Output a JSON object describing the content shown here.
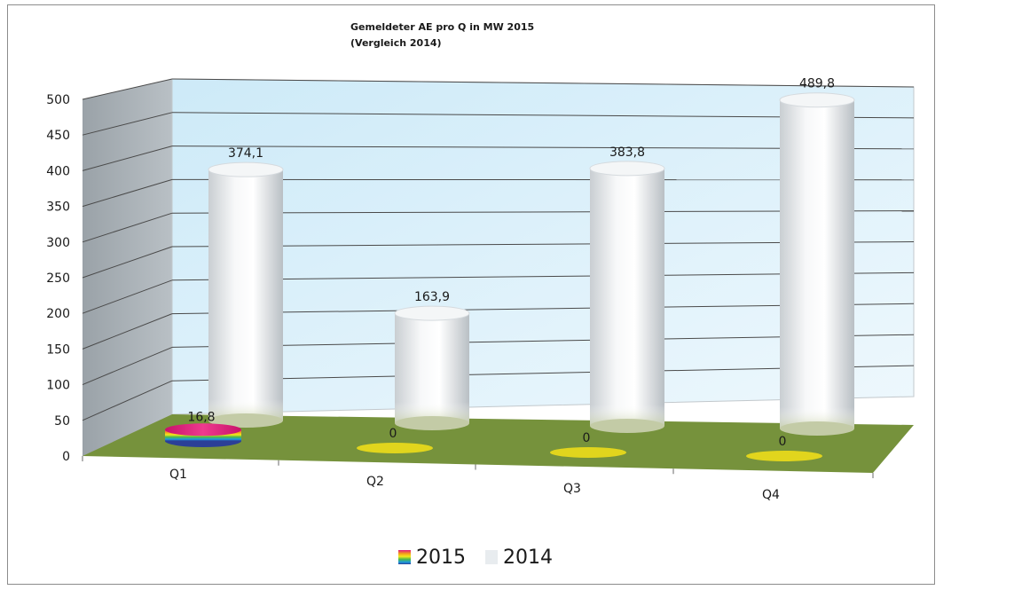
{
  "chart_data": {
    "type": "bar",
    "style": "3d-cylinder",
    "title": "Gemeldeter AE  pro Q in MW 2015",
    "subtitle": "(Vergleich 2014)",
    "categories": [
      "Q1",
      "Q2",
      "Q3",
      "Q4"
    ],
    "series": [
      {
        "name": "2015",
        "values": [
          16.8,
          0,
          0,
          0
        ],
        "labels": [
          "16,8",
          "0",
          "0",
          "0"
        ],
        "color": "rainbow",
        "zero_marker_color": "#e1d51d"
      },
      {
        "name": "2014",
        "values": [
          374.1,
          163.9,
          383.8,
          489.8
        ],
        "labels": [
          "374,1",
          "163,9",
          "383,8",
          "489,8"
        ],
        "color": "#e8ecef"
      }
    ],
    "y_ticks": [
      "0",
      "50",
      "100",
      "150",
      "200",
      "250",
      "300",
      "350",
      "400",
      "450",
      "500"
    ],
    "ylim": [
      0,
      500
    ],
    "grid": true,
    "legend_position": "bottom",
    "colors": {
      "back_wall": "#dff2fc",
      "side_wall": "#a9b1b7",
      "floor": "#76923c",
      "gridline": "#3a3a3a"
    }
  }
}
